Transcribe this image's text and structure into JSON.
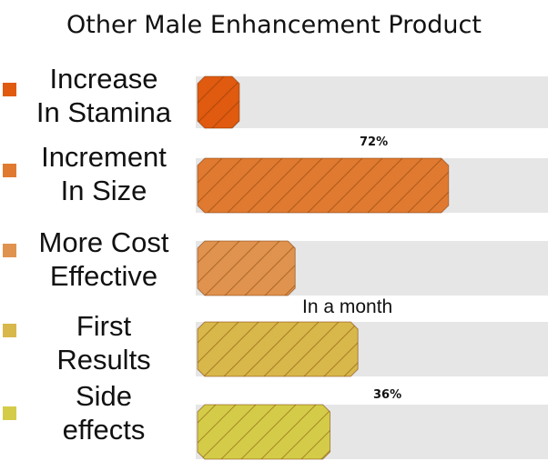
{
  "chart_data": {
    "type": "bar",
    "title": "Other Male Enhancement Product",
    "categories": [
      {
        "line1": "Increase",
        "line2": "In Stamina"
      },
      {
        "line1": "Increment",
        "line2": "In Size"
      },
      {
        "line1": "More Cost",
        "line2": "Effective"
      },
      {
        "line1": "First",
        "line2": "Results"
      },
      {
        "line1": "Side",
        "line2": "effects"
      }
    ],
    "values": [
      12,
      72,
      28,
      46,
      38
    ],
    "xlim": [
      0,
      100
    ],
    "colors": [
      "#e05a10",
      "#e07a30",
      "#e0934e",
      "#d8b84a",
      "#d4cc48"
    ],
    "annotations": [
      "72%",
      "In a month",
      "36%"
    ],
    "legend": "left",
    "grid": false
  }
}
